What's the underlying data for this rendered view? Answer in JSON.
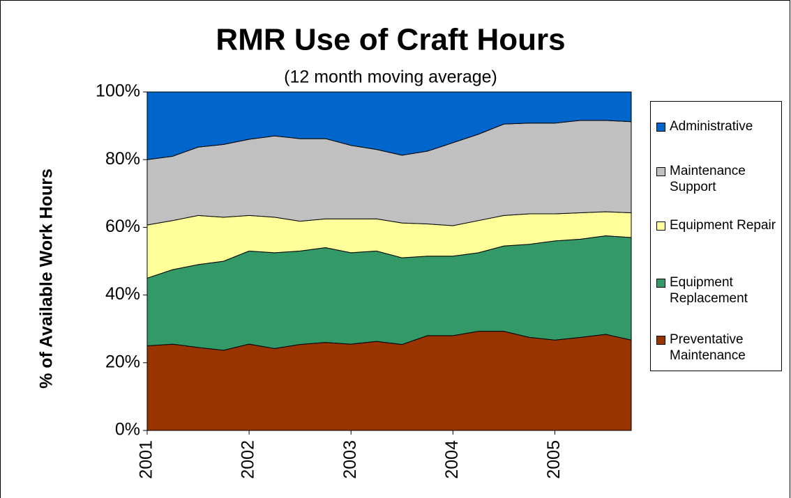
{
  "chart_data": {
    "type": "stacked_area",
    "title": "RMR Use of Craft Hours",
    "subtitle": "(12 month moving average)",
    "y_label": "% of Available Work Hours",
    "x": [
      2001,
      2001.25,
      2001.5,
      2001.75,
      2002,
      2002.25,
      2002.5,
      2002.75,
      2003,
      2003.25,
      2003.5,
      2003.75,
      2004,
      2004.25,
      2004.5,
      2004.75,
      2005,
      2005.25,
      2005.5,
      2005.75
    ],
    "xlim": [
      2001,
      2005.75
    ],
    "xticks": [
      2001,
      2002,
      2003,
      2004,
      2005
    ],
    "ylim": [
      0,
      100
    ],
    "yticks": [
      {
        "value": 0,
        "label": "0%"
      },
      {
        "value": 20,
        "label": "20%"
      },
      {
        "value": 40,
        "label": "40%"
      },
      {
        "value": 60,
        "label": "60%"
      },
      {
        "value": 80,
        "label": "80%"
      },
      {
        "value": 100,
        "label": "100%"
      }
    ],
    "legend": "right",
    "series": [
      {
        "name": "Preventative Maintenance",
        "color": "#993300",
        "values": [
          25,
          25.5,
          24.5,
          23.7,
          25.5,
          24.2,
          25.4,
          26,
          25.5,
          26.3,
          25.4,
          28,
          28,
          29.3,
          29.3,
          27.5,
          26.7,
          27.5,
          28.4,
          26.7
        ]
      },
      {
        "name": "Equipment Replacement",
        "color": "#339966",
        "values": [
          20,
          22,
          24.5,
          26.3,
          27.5,
          28.3,
          27.6,
          28,
          27,
          26.7,
          25.6,
          23.5,
          23.5,
          23.2,
          25.2,
          27.5,
          29.3,
          29,
          29.1,
          30.3
        ]
      },
      {
        "name": "Equipment Repair",
        "color": "#ffff99",
        "values": [
          15.7,
          14.5,
          14.5,
          13,
          10.5,
          10.5,
          8.8,
          8.5,
          10,
          9.5,
          10.3,
          9.5,
          9,
          9.5,
          9,
          9,
          8,
          7.8,
          7.1,
          7.3
        ]
      },
      {
        "name": "Maintenance Support",
        "color": "#c0c0c0",
        "values": [
          19.3,
          19,
          20.2,
          21.5,
          22.5,
          24,
          24.4,
          23.7,
          21.7,
          20.5,
          20,
          21.5,
          24.5,
          25.5,
          27,
          26.8,
          26.8,
          27.3,
          27,
          26.9
        ]
      },
      {
        "name": "Administrative",
        "color": "#0066cc",
        "values": [
          20,
          19,
          16.3,
          15.5,
          14,
          13,
          13.8,
          13.8,
          15.8,
          17,
          18.7,
          17.5,
          15,
          12.5,
          9.5,
          9.2,
          9.2,
          8.4,
          8.4,
          8.8
        ]
      }
    ]
  }
}
